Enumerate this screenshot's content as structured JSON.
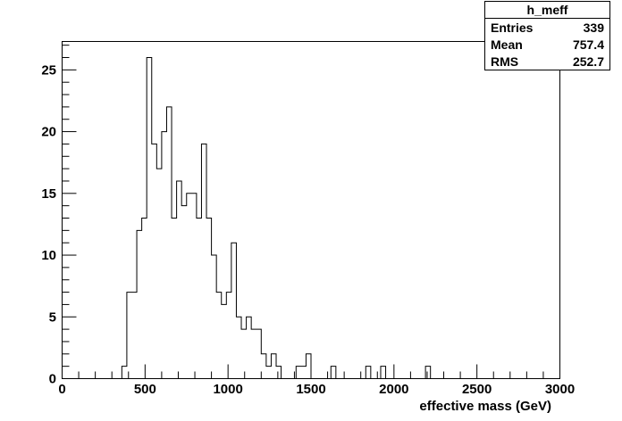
{
  "chart_data": {
    "type": "bar",
    "title": "",
    "xlabel": "effective mass (GeV)",
    "ylabel": "",
    "xlim": [
      0,
      3000
    ],
    "ylim": [
      0,
      27.3
    ],
    "bin_width": 30,
    "x_ticks": [
      "0",
      "500",
      "1000",
      "1500",
      "2000",
      "2500",
      "3000"
    ],
    "y_ticks": [
      "0",
      "5",
      "10",
      "15",
      "20",
      "25"
    ],
    "x_tick_values": [
      0,
      500,
      1000,
      1500,
      2000,
      2500,
      3000
    ],
    "y_tick_values": [
      0,
      5,
      10,
      15,
      20,
      25
    ],
    "bins": [
      {
        "x": 360,
        "y": 1
      },
      {
        "x": 390,
        "y": 7
      },
      {
        "x": 420,
        "y": 7
      },
      {
        "x": 450,
        "y": 12
      },
      {
        "x": 480,
        "y": 13
      },
      {
        "x": 510,
        "y": 26
      },
      {
        "x": 540,
        "y": 19
      },
      {
        "x": 570,
        "y": 17
      },
      {
        "x": 600,
        "y": 20
      },
      {
        "x": 630,
        "y": 22
      },
      {
        "x": 660,
        "y": 13
      },
      {
        "x": 690,
        "y": 16
      },
      {
        "x": 720,
        "y": 14
      },
      {
        "x": 750,
        "y": 15
      },
      {
        "x": 780,
        "y": 15
      },
      {
        "x": 810,
        "y": 13
      },
      {
        "x": 840,
        "y": 19
      },
      {
        "x": 870,
        "y": 13
      },
      {
        "x": 900,
        "y": 10
      },
      {
        "x": 930,
        "y": 7
      },
      {
        "x": 960,
        "y": 6
      },
      {
        "x": 990,
        "y": 7
      },
      {
        "x": 1020,
        "y": 11
      },
      {
        "x": 1050,
        "y": 5
      },
      {
        "x": 1080,
        "y": 4
      },
      {
        "x": 1110,
        "y": 5
      },
      {
        "x": 1140,
        "y": 4
      },
      {
        "x": 1170,
        "y": 4
      },
      {
        "x": 1200,
        "y": 2
      },
      {
        "x": 1230,
        "y": 1
      },
      {
        "x": 1260,
        "y": 2
      },
      {
        "x": 1290,
        "y": 1
      },
      {
        "x": 1410,
        "y": 1
      },
      {
        "x": 1440,
        "y": 1
      },
      {
        "x": 1470,
        "y": 2
      },
      {
        "x": 1620,
        "y": 1
      },
      {
        "x": 1830,
        "y": 1
      },
      {
        "x": 1920,
        "y": 1
      },
      {
        "x": 2190,
        "y": 1
      }
    ],
    "legend": "top-right",
    "grid": false
  },
  "stats_box": {
    "title": "h_meff",
    "rows": [
      {
        "label": "Entries",
        "value": "339"
      },
      {
        "label": "Mean",
        "value": "757.4"
      },
      {
        "label": "RMS",
        "value": "252.7"
      }
    ]
  }
}
